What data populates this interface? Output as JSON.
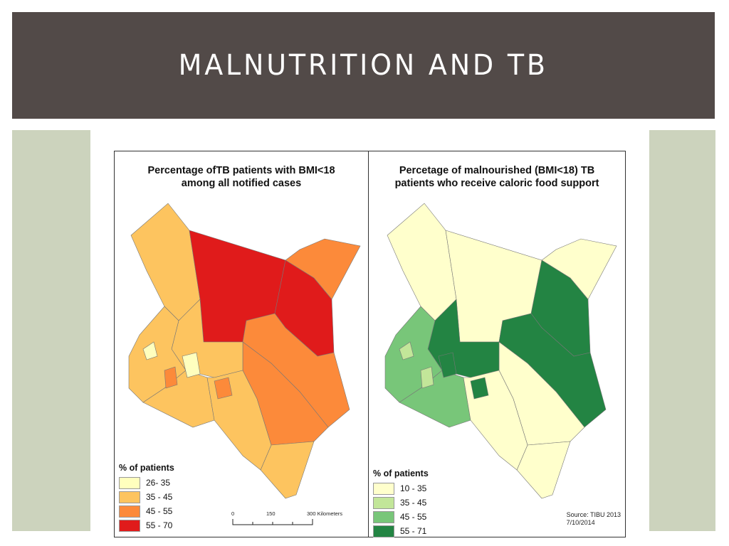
{
  "slide": {
    "title": "MALNUTRITION AND TB"
  },
  "left_map": {
    "title_line1": "Percentage ofTB patients with BMI<18",
    "title_line2": "among all notified cases",
    "legend_title": "% of patients",
    "legend": [
      {
        "label": "26- 35",
        "color": "#ffffbe"
      },
      {
        "label": "35 - 45",
        "color": "#fdc45f"
      },
      {
        "label": "45 - 55",
        "color": "#fc8a3a"
      },
      {
        "label": "55 - 70",
        "color": "#e01b1b"
      }
    ],
    "scale": {
      "t0": "0",
      "t1": "150",
      "t2": "300 Kilometers"
    }
  },
  "right_map": {
    "title_line1": "Percetage of malnourished (BMI<18) TB",
    "title_line2": "patients who receive caloric food support",
    "legend_title": "% of patients",
    "legend": [
      {
        "label": "10 - 35",
        "color": "#ffffcc"
      },
      {
        "label": "35 - 45",
        "color": "#c2e699"
      },
      {
        "label": "45 - 55",
        "color": "#78c679"
      },
      {
        "label": "55 - 71",
        "color": "#238443"
      }
    ],
    "source_line1": "Source: TIBU 2013",
    "source_line2": "7/10/2014"
  },
  "colors": {
    "title_bar": "#524a48",
    "side_panels": "#ccd3bd"
  }
}
